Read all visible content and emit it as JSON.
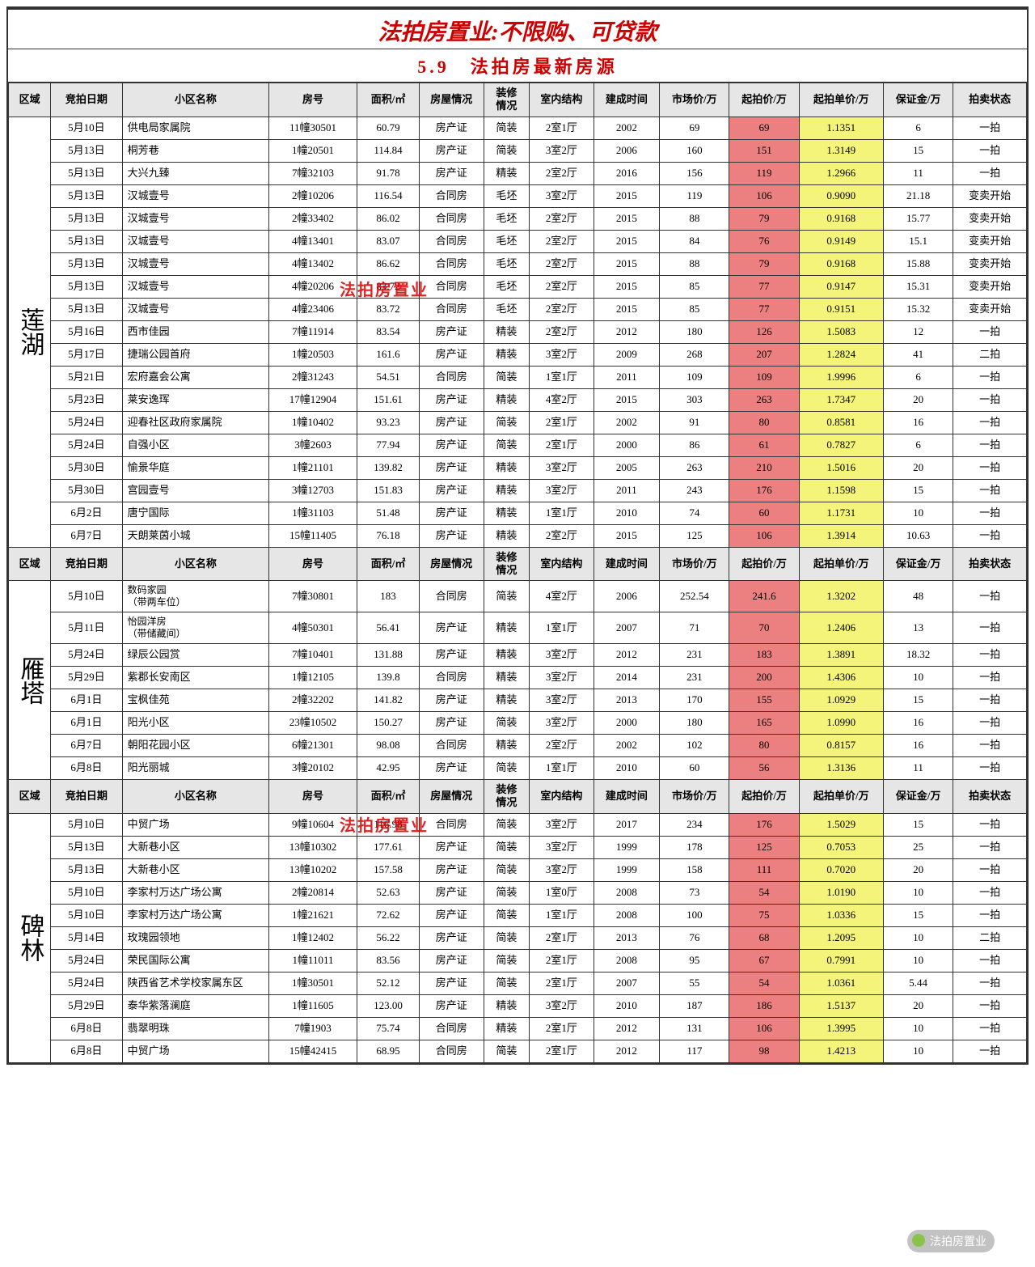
{
  "title": "法拍房置业:不限购、可贷款",
  "subtitle": "5.9　法拍房最新房源",
  "watermark": "法拍房置业",
  "headers": [
    "区域",
    "竞拍日期",
    "小区名称",
    "房号",
    "面积/㎡",
    "房屋情况",
    "装修情况",
    "室内结构",
    "建成时间",
    "市场价/万",
    "起拍价/万",
    "起拍单价/万",
    "保证金/万",
    "拍卖状态"
  ],
  "sections": [
    {
      "region": "莲湖",
      "rows": [
        [
          "5月10日",
          "供电局家属院",
          "11幢30501",
          "60.79",
          "房产证",
          "简装",
          "2室1厅",
          "2002",
          "69",
          "69",
          "1.1351",
          "6",
          "一拍"
        ],
        [
          "5月13日",
          "桐芳巷",
          "1幢20501",
          "114.84",
          "房产证",
          "简装",
          "3室2厅",
          "2006",
          "160",
          "151",
          "1.3149",
          "15",
          "一拍"
        ],
        [
          "5月13日",
          "大兴九臻",
          "7幢32103",
          "91.78",
          "房产证",
          "精装",
          "2室2厅",
          "2016",
          "156",
          "119",
          "1.2966",
          "11",
          "一拍"
        ],
        [
          "5月13日",
          "汉城壹号",
          "2幢10206",
          "116.54",
          "合同房",
          "毛坯",
          "3室2厅",
          "2015",
          "119",
          "106",
          "0.9090",
          "21.18",
          "变卖开始"
        ],
        [
          "5月13日",
          "汉城壹号",
          "2幢33402",
          "86.02",
          "合同房",
          "毛坯",
          "2室2厅",
          "2015",
          "88",
          "79",
          "0.9168",
          "15.77",
          "变卖开始"
        ],
        [
          "5月13日",
          "汉城壹号",
          "4幢13401",
          "83.07",
          "合同房",
          "毛坯",
          "2室2厅",
          "2015",
          "84",
          "76",
          "0.9149",
          "15.1",
          "变卖开始"
        ],
        [
          "5月13日",
          "汉城壹号",
          "4幢13402",
          "86.62",
          "合同房",
          "毛坯",
          "2室2厅",
          "2015",
          "88",
          "79",
          "0.9168",
          "15.88",
          "变卖开始"
        ],
        [
          "5月13日",
          "汉城壹号",
          "4幢20206",
          "83.72",
          "合同房",
          "毛坯",
          "2室2厅",
          "2015",
          "85",
          "77",
          "0.9147",
          "15.31",
          "变卖开始"
        ],
        [
          "5月13日",
          "汉城壹号",
          "4幢23406",
          "83.72",
          "合同房",
          "毛坯",
          "2室2厅",
          "2015",
          "85",
          "77",
          "0.9151",
          "15.32",
          "变卖开始"
        ],
        [
          "5月16日",
          "西市佳园",
          "7幢11914",
          "83.54",
          "房产证",
          "精装",
          "2室2厅",
          "2012",
          "180",
          "126",
          "1.5083",
          "12",
          "一拍"
        ],
        [
          "5月17日",
          "捷瑞公园首府",
          "1幢20503",
          "161.6",
          "房产证",
          "精装",
          "3室2厅",
          "2009",
          "268",
          "207",
          "1.2824",
          "41",
          "二拍"
        ],
        [
          "5月21日",
          "宏府嘉会公寓",
          "2幢31243",
          "54.51",
          "合同房",
          "简装",
          "1室1厅",
          "2011",
          "109",
          "109",
          "1.9996",
          "6",
          "一拍"
        ],
        [
          "5月23日",
          "莱安逸珲",
          "17幢12904",
          "151.61",
          "房产证",
          "精装",
          "4室2厅",
          "2015",
          "303",
          "263",
          "1.7347",
          "20",
          "一拍"
        ],
        [
          "5月24日",
          "迎春社区政府家属院",
          "1幢10402",
          "93.23",
          "房产证",
          "简装",
          "2室1厅",
          "2002",
          "91",
          "80",
          "0.8581",
          "16",
          "一拍"
        ],
        [
          "5月24日",
          "自强小区",
          "3幢2603",
          "77.94",
          "房产证",
          "简装",
          "2室1厅",
          "2000",
          "86",
          "61",
          "0.7827",
          "6",
          "一拍"
        ],
        [
          "5月30日",
          "愉景华庭",
          "1幢21101",
          "139.82",
          "房产证",
          "精装",
          "3室2厅",
          "2005",
          "263",
          "210",
          "1.5016",
          "20",
          "一拍"
        ],
        [
          "5月30日",
          "宫园壹号",
          "3幢12703",
          "151.83",
          "房产证",
          "精装",
          "3室2厅",
          "2011",
          "243",
          "176",
          "1.1598",
          "15",
          "一拍"
        ],
        [
          "6月2日",
          "唐宁国际",
          "1幢31103",
          "51.48",
          "房产证",
          "精装",
          "1室1厅",
          "2010",
          "74",
          "60",
          "1.1731",
          "10",
          "一拍"
        ],
        [
          "6月7日",
          "天朗莱茵小城",
          "15幢11405",
          "76.18",
          "房产证",
          "精装",
          "2室2厅",
          "2015",
          "125",
          "106",
          "1.3914",
          "10.63",
          "一拍"
        ]
      ]
    },
    {
      "region": "雁塔",
      "rows": [
        [
          "5月10日",
          "数码家园\n（带两车位）",
          "7幢30801",
          "183",
          "合同房",
          "简装",
          "4室2厅",
          "2006",
          "252.54",
          "241.6",
          "1.3202",
          "48",
          "一拍"
        ],
        [
          "5月11日",
          "怡园洋房\n（带储藏间）",
          "4幢50301",
          "56.41",
          "房产证",
          "精装",
          "1室1厅",
          "2007",
          "71",
          "70",
          "1.2406",
          "13",
          "一拍"
        ],
        [
          "5月24日",
          "绿辰公园赏",
          "7幢10401",
          "131.88",
          "房产证",
          "精装",
          "3室2厅",
          "2012",
          "231",
          "183",
          "1.3891",
          "18.32",
          "一拍"
        ],
        [
          "5月29日",
          "紫郡长安南区",
          "1幢12105",
          "139.8",
          "合同房",
          "精装",
          "3室2厅",
          "2014",
          "231",
          "200",
          "1.4306",
          "10",
          "一拍"
        ],
        [
          "6月1日",
          "宝枫佳苑",
          "2幢32202",
          "141.82",
          "房产证",
          "精装",
          "3室2厅",
          "2013",
          "170",
          "155",
          "1.0929",
          "15",
          "一拍"
        ],
        [
          "6月1日",
          "阳光小区",
          "23幢10502",
          "150.27",
          "房产证",
          "简装",
          "3室2厅",
          "2000",
          "180",
          "165",
          "1.0990",
          "16",
          "一拍"
        ],
        [
          "6月7日",
          "朝阳花园小区",
          "6幢21301",
          "98.08",
          "合同房",
          "精装",
          "2室2厅",
          "2002",
          "102",
          "80",
          "0.8157",
          "16",
          "一拍"
        ],
        [
          "6月8日",
          "阳光丽城",
          "3幢20102",
          "42.95",
          "房产证",
          "简装",
          "1室1厅",
          "2010",
          "60",
          "56",
          "1.3136",
          "11",
          "一拍"
        ]
      ]
    },
    {
      "region": "碑林",
      "rows": [
        [
          "5月10日",
          "中贸广场",
          "9幢10604",
          "116.98",
          "合同房",
          "简装",
          "3室2厅",
          "2017",
          "234",
          "176",
          "1.5029",
          "15",
          "一拍"
        ],
        [
          "5月13日",
          "大新巷小区",
          "13幢10302",
          "177.61",
          "房产证",
          "简装",
          "3室2厅",
          "1999",
          "178",
          "125",
          "0.7053",
          "25",
          "一拍"
        ],
        [
          "5月13日",
          "大新巷小区",
          "13幢10202",
          "157.58",
          "房产证",
          "简装",
          "3室2厅",
          "1999",
          "158",
          "111",
          "0.7020",
          "20",
          "一拍"
        ],
        [
          "5月10日",
          "李家村万达广场公寓",
          "2幢20814",
          "52.63",
          "房产证",
          "简装",
          "1室0厅",
          "2008",
          "73",
          "54",
          "1.0190",
          "10",
          "一拍"
        ],
        [
          "5月10日",
          "李家村万达广场公寓",
          "1幢21621",
          "72.62",
          "房产证",
          "简装",
          "1室1厅",
          "2008",
          "100",
          "75",
          "1.0336",
          "15",
          "一拍"
        ],
        [
          "5月14日",
          "玫瑰园领地",
          "1幢12402",
          "56.22",
          "房产证",
          "简装",
          "2室1厅",
          "2013",
          "76",
          "68",
          "1.2095",
          "10",
          "二拍"
        ],
        [
          "5月24日",
          "荣民国际公寓",
          "1幢11011",
          "83.56",
          "房产证",
          "简装",
          "2室1厅",
          "2008",
          "95",
          "67",
          "0.7991",
          "10",
          "一拍"
        ],
        [
          "5月24日",
          "陕西省艺术学校家属东区",
          "1幢30501",
          "52.12",
          "房产证",
          "简装",
          "2室1厅",
          "2007",
          "55",
          "54",
          "1.0361",
          "5.44",
          "一拍"
        ],
        [
          "5月29日",
          "泰华紫落澜庭",
          "1幢11605",
          "123.00",
          "房产证",
          "精装",
          "3室2厅",
          "2010",
          "187",
          "186",
          "1.5137",
          "20",
          "一拍"
        ],
        [
          "6月8日",
          "翡翠明珠",
          "7幢1903",
          "75.74",
          "合同房",
          "精装",
          "2室1厅",
          "2012",
          "131",
          "106",
          "1.3995",
          "10",
          "一拍"
        ],
        [
          "6月8日",
          "中贸广场",
          "15幢42415",
          "68.95",
          "合同房",
          "简装",
          "2室1厅",
          "2012",
          "117",
          "98",
          "1.4213",
          "10",
          "一拍"
        ]
      ]
    }
  ]
}
